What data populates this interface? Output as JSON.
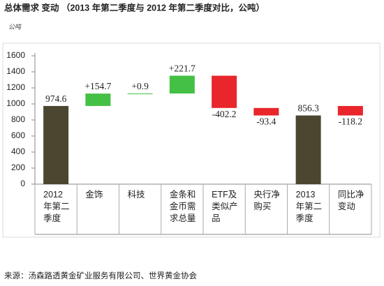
{
  "chart_data": {
    "type": "waterfall",
    "title": "总体需求 变动 （2013 年第二季度与 2012 年第二季度对比，公吨）",
    "unit": "公吨",
    "source": "来源：汤森路透黄金矿业服务有限公司、世界黄金协会",
    "categories": [
      "2012年第二季度",
      "金饰",
      "科技",
      "金条和金币需求总量",
      "ETF及类似产品",
      "央行净购买",
      "2013年第二季度",
      "同比净变动"
    ],
    "measure": [
      "total",
      "relative",
      "relative",
      "relative",
      "relative",
      "relative",
      "total",
      "difference"
    ],
    "values": [
      974.6,
      154.7,
      0.9,
      221.7,
      -402.2,
      -93.4,
      856.3,
      -118.2
    ],
    "value_labels": [
      "974.6",
      "+154.7",
      "+0.9",
      "+221.7",
      "-402.2",
      "-93.4",
      "856.3",
      "-118.2"
    ],
    "colors": {
      "total": "#4a4630",
      "increase": "#44c044",
      "decrease": "#e8262b"
    },
    "ylim": [
      0,
      1600
    ],
    "yticks": [
      0,
      200,
      400,
      600,
      800,
      1000,
      1200,
      1400,
      1600
    ],
    "grid": false
  }
}
